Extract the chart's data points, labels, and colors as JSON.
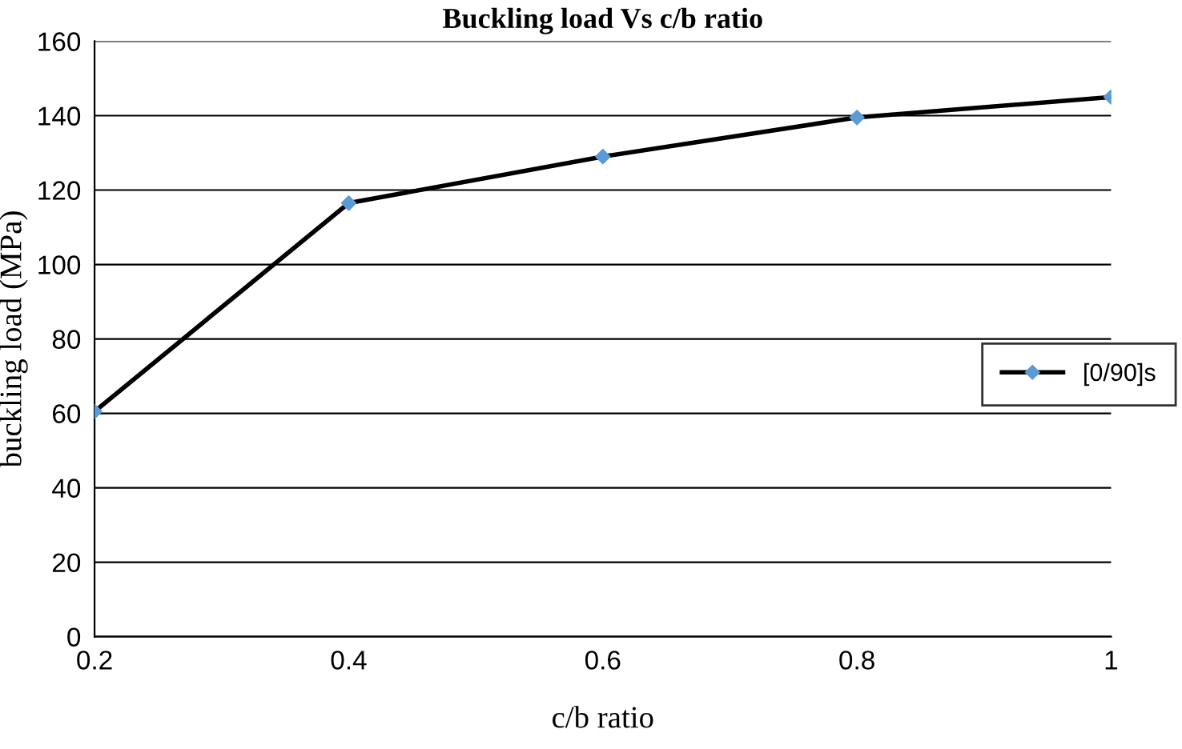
{
  "chart_data": {
    "type": "line",
    "title": "Buckling load Vs c/b ratio",
    "xlabel": "c/b ratio",
    "ylabel": "buckling load (MPa)",
    "x": [
      0.2,
      0.4,
      0.6,
      0.8,
      1.0
    ],
    "series": [
      {
        "name": "[0/90]s",
        "color": "#000000",
        "colors": [
          "#5b9bd5",
          "#5b9bd5",
          "#5b9bd5",
          "#5b9bd5",
          "#5b9bd5"
        ],
        "values": [
          60.5,
          116.5,
          129,
          139.5,
          145
        ]
      }
    ],
    "xlim": [
      0.2,
      1.0
    ],
    "xticks": [
      0.2,
      0.4,
      0.6,
      0.8,
      1
    ],
    "ylim": [
      0,
      160
    ],
    "yticks": [
      0,
      20,
      40,
      60,
      80,
      100,
      120,
      140,
      160
    ],
    "grid": "y",
    "legend": "right",
    "marker": "diamond",
    "line_style": "solid"
  }
}
